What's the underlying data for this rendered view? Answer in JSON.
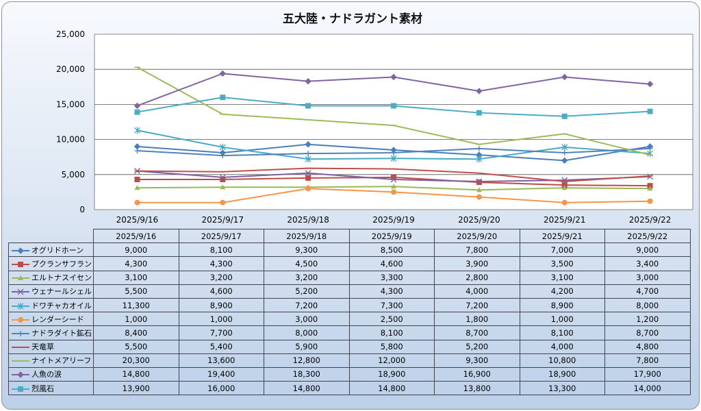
{
  "chart_data": {
    "type": "line",
    "title": "五大陸・ナドラガント素材",
    "categories": [
      "2025/9/16",
      "2025/9/17",
      "2025/9/18",
      "2025/9/19",
      "2025/9/20",
      "2025/9/21",
      "2025/9/22"
    ],
    "ylim": [
      0,
      25000
    ],
    "yticks": [
      "0",
      "5,000",
      "10,000",
      "15,000",
      "20,000",
      "25,000"
    ],
    "grid": true,
    "legend": "data-table",
    "series": [
      {
        "name": "オグリドホーン",
        "color": "#4a7ebb",
        "marker": "diamond",
        "values": [
          9000,
          8100,
          9300,
          8500,
          7800,
          7000,
          9000
        ],
        "display": [
          "9,000",
          "8,100",
          "9,300",
          "8,500",
          "7,800",
          "7,000",
          "9,000"
        ]
      },
      {
        "name": "プクランサフラン",
        "color": "#be4b48",
        "marker": "square",
        "values": [
          4300,
          4300,
          4500,
          4600,
          3900,
          3500,
          3400
        ],
        "display": [
          "4,300",
          "4,300",
          "4,500",
          "4,600",
          "3,900",
          "3,500",
          "3,400"
        ]
      },
      {
        "name": "エルトナスイセン",
        "color": "#98b954",
        "marker": "triangle",
        "values": [
          3100,
          3200,
          3200,
          3300,
          2800,
          3100,
          3000
        ],
        "display": [
          "3,100",
          "3,200",
          "3,200",
          "3,300",
          "2,800",
          "3,100",
          "3,000"
        ]
      },
      {
        "name": "ウェナールシェル",
        "color": "#7d60a0",
        "marker": "x",
        "values": [
          5500,
          4600,
          5200,
          4300,
          4000,
          4200,
          4700
        ],
        "display": [
          "5,500",
          "4,600",
          "5,200",
          "4,300",
          "4,000",
          "4,200",
          "4,700"
        ]
      },
      {
        "name": "ドワチャカオイル",
        "color": "#46aac5",
        "marker": "star",
        "values": [
          11300,
          8900,
          7200,
          7300,
          7200,
          8900,
          8000
        ],
        "display": [
          "11,300",
          "8,900",
          "7,200",
          "7,300",
          "7,200",
          "8,900",
          "8,000"
        ]
      },
      {
        "name": "レンダーシード",
        "color": "#f69546",
        "marker": "circle",
        "values": [
          1000,
          1000,
          3000,
          2500,
          1800,
          1000,
          1200
        ],
        "display": [
          "1,000",
          "1,000",
          "3,000",
          "2,500",
          "1,800",
          "1,000",
          "1,200"
        ]
      },
      {
        "name": "ナドラダイト鉱石",
        "color": "#4f81bd",
        "marker": "plus",
        "values": [
          8400,
          7700,
          8000,
          8100,
          8700,
          8100,
          8700
        ],
        "display": [
          "8,400",
          "7,700",
          "8,000",
          "8,100",
          "8,700",
          "8,100",
          "8,700"
        ]
      },
      {
        "name": "天竜草",
        "color": "#c0504d",
        "marker": "dash",
        "values": [
          5500,
          5400,
          5900,
          5800,
          5200,
          4000,
          4800
        ],
        "display": [
          "5,500",
          "5,400",
          "5,900",
          "5,800",
          "5,200",
          "4,000",
          "4,800"
        ]
      },
      {
        "name": "ナイトメアリーフ",
        "color": "#9bbb59",
        "marker": "dash",
        "values": [
          20300,
          13600,
          12800,
          12000,
          9300,
          10800,
          7800
        ],
        "display": [
          "20,300",
          "13,600",
          "12,800",
          "12,000",
          "9,300",
          "10,800",
          "7,800"
        ]
      },
      {
        "name": "人魚の涙",
        "color": "#8064a2",
        "marker": "diamond",
        "values": [
          14800,
          19400,
          18300,
          18900,
          16900,
          18900,
          17900
        ],
        "display": [
          "14,800",
          "19,400",
          "18,300",
          "18,900",
          "16,900",
          "18,900",
          "17,900"
        ]
      },
      {
        "name": "烈風石",
        "color": "#4bacc6",
        "marker": "square",
        "values": [
          13900,
          16000,
          14800,
          14800,
          13800,
          13300,
          14000
        ],
        "display": [
          "13,900",
          "16,000",
          "14,800",
          "14,800",
          "13,800",
          "13,300",
          "14,000"
        ]
      }
    ]
  }
}
